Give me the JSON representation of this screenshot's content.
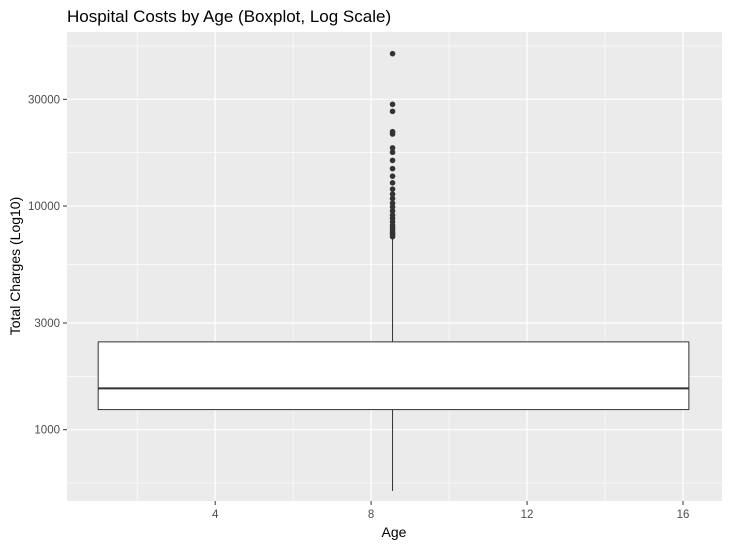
{
  "chart_data": {
    "type": "boxplot",
    "title": "Hospital Costs by Age (Boxplot, Log Scale)",
    "xlabel": "Age",
    "ylabel": "Total Charges (Log10)",
    "x_scale": "linear",
    "y_scale": "log10",
    "xlim": [
      0.2,
      17.0
    ],
    "ylim": [
      480,
      60000
    ],
    "x_ticks": [
      4,
      8,
      12,
      16
    ],
    "x_tick_labels": [
      "4",
      "8",
      "12",
      "16"
    ],
    "y_ticks": [
      1000,
      3000,
      10000,
      30000
    ],
    "y_tick_labels": [
      "1000",
      "3000",
      "10000",
      "30000"
    ],
    "grid": true,
    "legend": "none",
    "background": "#ebebeb",
    "grid_color": "#ffffff",
    "box": {
      "x_center": 8.55,
      "x_left": 1.0,
      "x_right": 16.15,
      "whisker_low": 532,
      "q1": 1230,
      "median": 1530,
      "q3": 2470,
      "whisker_high": 7200,
      "fill": "#ffffff",
      "stroke": "#333333"
    },
    "outliers": [
      7300,
      7450,
      7600,
      7800,
      8000,
      8200,
      8500,
      8800,
      9100,
      9500,
      9900,
      10300,
      10800,
      11300,
      11900,
      12700,
      13600,
      14700,
      16000,
      17400,
      18200,
      21000,
      21500,
      26500,
      28500,
      48000
    ],
    "outlier_color": "#333333"
  }
}
